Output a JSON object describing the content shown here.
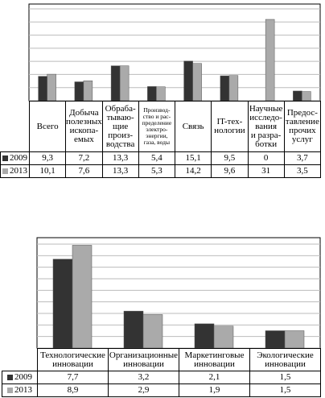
{
  "chart_data": [
    {
      "type": "bar",
      "categories": [
        "Всего",
        "Добыча\nполезных\nископа-\nемых",
        "Обраба-\nтываю-\nщие\nпроиз-\nводства",
        "Производ-\nство и рас-\nпределение\nэлектро-\nэнергии,\nгаза, воды",
        "Связь",
        "IT-тех-\nнологии",
        "Научные\nисследо-\nвания\nи разра-\nботки",
        "Предос-\nтавление\nпрочих\nуслуг"
      ],
      "series": [
        {
          "name": "2009",
          "color": "#333333",
          "values": [
            9.3,
            7.2,
            13.3,
            5.4,
            15.1,
            9.5,
            0,
            3.7
          ],
          "value_labels": [
            "9,3",
            "7,2",
            "13,3",
            "5,4",
            "15,1",
            "9,5",
            "0",
            "3,7"
          ]
        },
        {
          "name": "2013",
          "color": "#aaaaaa",
          "values": [
            10.1,
            7.6,
            13.3,
            5.3,
            14.2,
            9.6,
            31,
            3.5
          ],
          "value_labels": [
            "10,1",
            "7,6",
            "13,3",
            "5,3",
            "14,2",
            "9,6",
            "31",
            "3,5"
          ]
        }
      ],
      "ylim": [
        0,
        35
      ],
      "yticks": [
        0,
        5,
        10,
        15,
        20,
        25,
        30,
        35
      ],
      "grid": true
    },
    {
      "type": "bar",
      "categories": [
        "Технологические\nинновации",
        "Организационные\nинновации",
        "Маркетинговые\nинновации",
        "Экологические\nинновации"
      ],
      "series": [
        {
          "name": "2009",
          "color": "#333333",
          "values": [
            7.7,
            3.2,
            2.1,
            1.5
          ],
          "value_labels": [
            "7,7",
            "3,2",
            "2,1",
            "1,5"
          ]
        },
        {
          "name": "2013",
          "color": "#aaaaaa",
          "values": [
            8.9,
            2.9,
            1.9,
            1.5
          ],
          "value_labels": [
            "8,9",
            "2,9",
            "1,9",
            "1,5"
          ]
        }
      ],
      "ylim": [
        0,
        9
      ],
      "yticks": [
        0,
        1,
        2,
        3,
        4,
        5,
        6,
        7,
        8,
        9
      ],
      "grid": true
    }
  ]
}
